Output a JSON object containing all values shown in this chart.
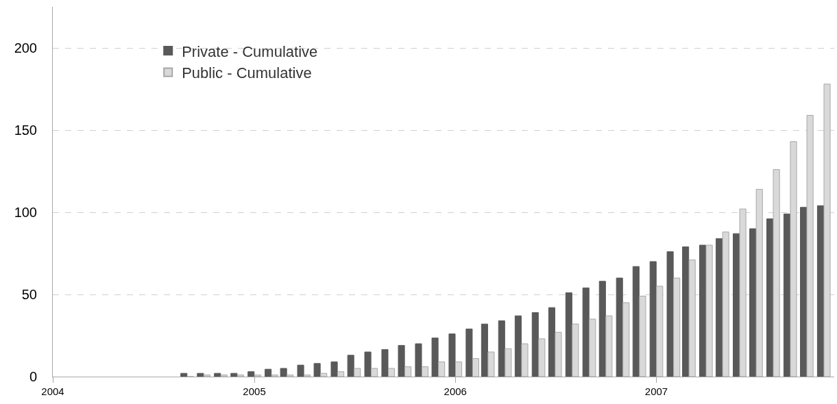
{
  "chart_data": {
    "type": "bar",
    "x": [
      "2004-09",
      "2004-10",
      "2004-11",
      "2004-12",
      "2005-01",
      "2005-02",
      "2005-03",
      "2005-04",
      "2005-05",
      "2005-06",
      "2005-07",
      "2005-08",
      "2005-09",
      "2005-10",
      "2005-11",
      "2005-12",
      "2006-01",
      "2006-02",
      "2006-03",
      "2006-04",
      "2006-05",
      "2006-06",
      "2006-07",
      "2006-08",
      "2006-09",
      "2006-10",
      "2006-11",
      "2006-12",
      "2007-01",
      "2007-02",
      "2007-03",
      "2007-04",
      "2007-05",
      "2007-06",
      "2007-07",
      "2007-08",
      "2007-09",
      "2007-10",
      "2007-11"
    ],
    "series": [
      {
        "name": "Private - Cumulative",
        "color": "#595959",
        "values": [
          2,
          2,
          2,
          2,
          3,
          4.5,
          5,
          7,
          8,
          9,
          13,
          15,
          16.5,
          19,
          20,
          23.5,
          26,
          29,
          32,
          34,
          37,
          39,
          42,
          51,
          54,
          58,
          60,
          67,
          70,
          76,
          79,
          80,
          84,
          87,
          90,
          96,
          99,
          103,
          104
        ]
      },
      {
        "name": "Public - Cumulative",
        "color": "#d9d9d9",
        "values": [
          0,
          1,
          1,
          1,
          1,
          1,
          1,
          1,
          2,
          3,
          5,
          5,
          5,
          6,
          6,
          9,
          9,
          11,
          15,
          17,
          20,
          23,
          27,
          32,
          35,
          37,
          45,
          49,
          55,
          60,
          71,
          80,
          88,
          102,
          114,
          126,
          143,
          159,
          178
        ]
      }
    ],
    "xlim": [
      "2004-01",
      "2007-11-20"
    ],
    "xticks": [
      {
        "value": "2004",
        "label": "2004"
      },
      {
        "value": "2005",
        "label": "2005"
      },
      {
        "value": "2006",
        "label": "2006"
      },
      {
        "value": "2007",
        "label": "2007"
      }
    ],
    "ylim": [
      0,
      225
    ],
    "yticks": [
      0,
      50,
      100,
      150,
      200
    ],
    "grid": "y",
    "legend": "top left"
  }
}
